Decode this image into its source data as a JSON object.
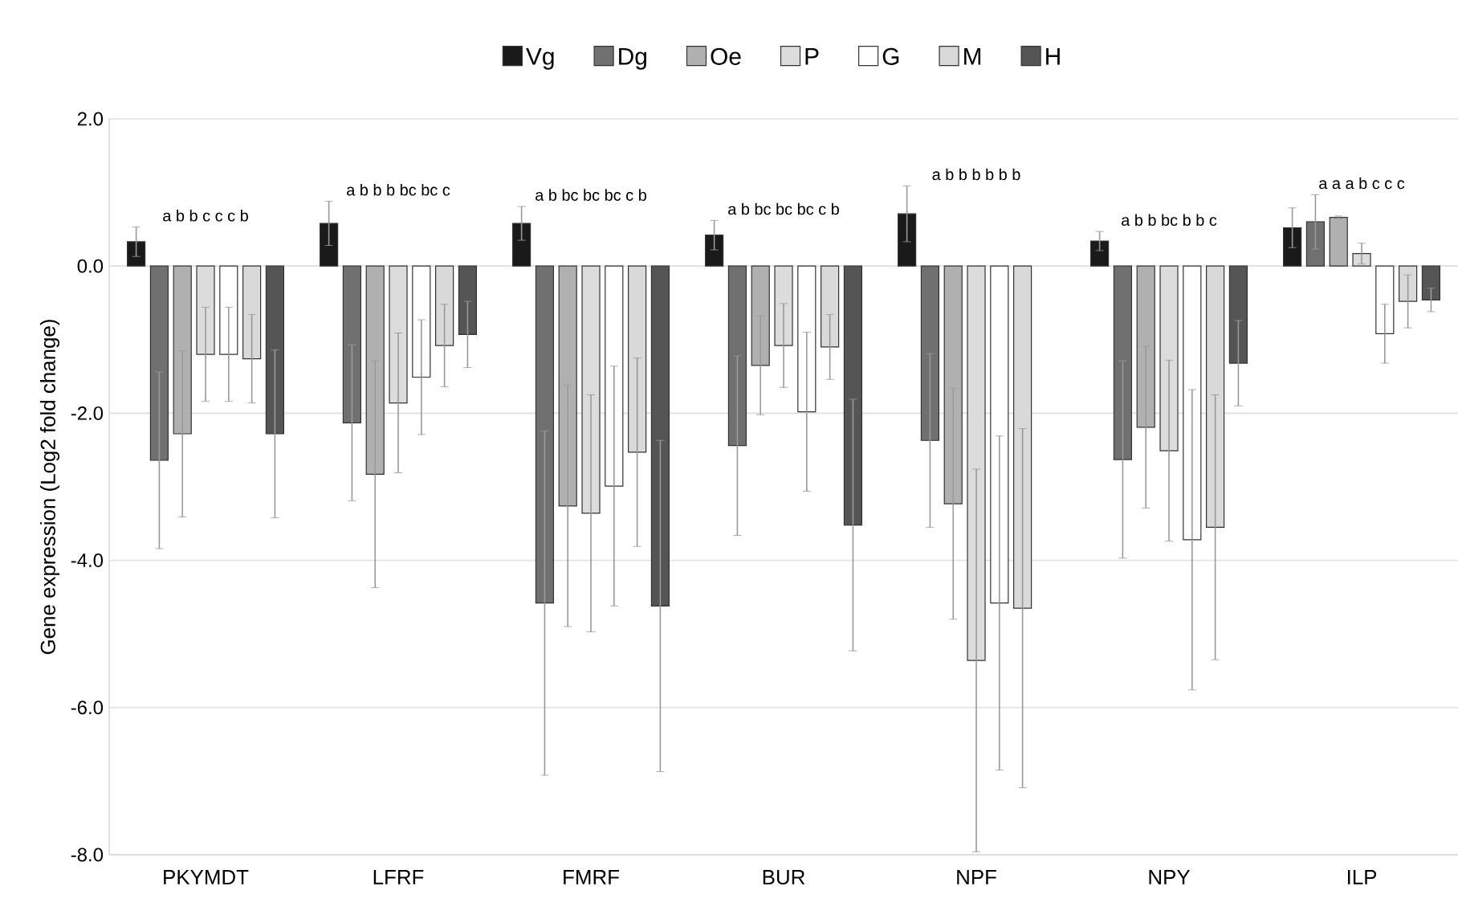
{
  "chart_data": {
    "type": "bar",
    "ylabel": "Gene expression (Log2 fold change)",
    "categories": [
      "PKYMDT",
      "LFRF",
      "FMRF",
      "BUR",
      "NPF",
      "NPY",
      "ILP"
    ],
    "series": [
      {
        "name": "Vg",
        "color": "#1a1a1a",
        "values": [
          0.33,
          0.58,
          0.58,
          0.42,
          0.71,
          0.34,
          0.52
        ],
        "errors": [
          0.2,
          0.3,
          0.23,
          0.2,
          0.38,
          0.13,
          0.27
        ]
      },
      {
        "name": "Dg",
        "color": "#707070",
        "values": [
          -2.64,
          -2.13,
          -4.58,
          -2.44,
          -2.37,
          -2.63,
          0.6
        ],
        "errors": [
          1.2,
          1.06,
          2.34,
          1.22,
          1.18,
          1.34,
          0.37
        ]
      },
      {
        "name": "Oe",
        "color": "#b0b0b0",
        "values": [
          -2.28,
          -2.83,
          -3.26,
          -1.35,
          -3.23,
          -2.19,
          0.66
        ],
        "errors": [
          1.13,
          1.54,
          1.64,
          0.67,
          1.57,
          1.1,
          0.02
        ]
      },
      {
        "name": "P",
        "color": "#dcdcdc",
        "values": [
          -1.2,
          -1.86,
          -3.36,
          -1.08,
          -5.36,
          -2.51,
          0.17
        ],
        "errors": [
          0.64,
          0.95,
          1.61,
          0.57,
          2.6,
          1.23,
          0.14
        ]
      },
      {
        "name": "G",
        "color": "#ffffff",
        "values": [
          -1.2,
          -1.51,
          -2.99,
          -1.98,
          -4.58,
          -3.72,
          -0.92
        ],
        "errors": [
          0.64,
          0.78,
          1.63,
          1.08,
          2.27,
          2.04,
          0.4
        ]
      },
      {
        "name": "M",
        "color": "#d9d9d9",
        "values": [
          -1.26,
          -1.08,
          -2.53,
          -1.1,
          -4.65,
          -3.55,
          -0.48
        ],
        "errors": [
          0.6,
          0.56,
          1.28,
          0.44,
          2.44,
          1.8,
          0.36
        ]
      },
      {
        "name": "H",
        "color": "#555555",
        "values": [
          -2.28,
          -0.93,
          -4.62,
          -3.52,
          null,
          -1.32,
          -0.46
        ],
        "errors": [
          1.14,
          0.45,
          2.25,
          1.71,
          null,
          0.58,
          0.16
        ]
      }
    ],
    "ylim": [
      -8,
      2
    ],
    "yticks": [
      {
        "value": -8,
        "label": "-8.0"
      },
      {
        "value": -6,
        "label": "-6.0"
      },
      {
        "value": -4,
        "label": "-4.0"
      },
      {
        "value": -2,
        "label": "-2.0"
      },
      {
        "value": 0,
        "label": "0.0"
      },
      {
        "value": 2,
        "label": "2.0"
      }
    ],
    "grid": "y",
    "legend": "top",
    "annotations": [
      "a b b c c c b",
      "a b b b bc bc c",
      "a b bc bc bc c b",
      "a b bc bc bc c b",
      "a b b b b b b",
      "a b b bc b b c",
      "a a a b c c c"
    ]
  }
}
